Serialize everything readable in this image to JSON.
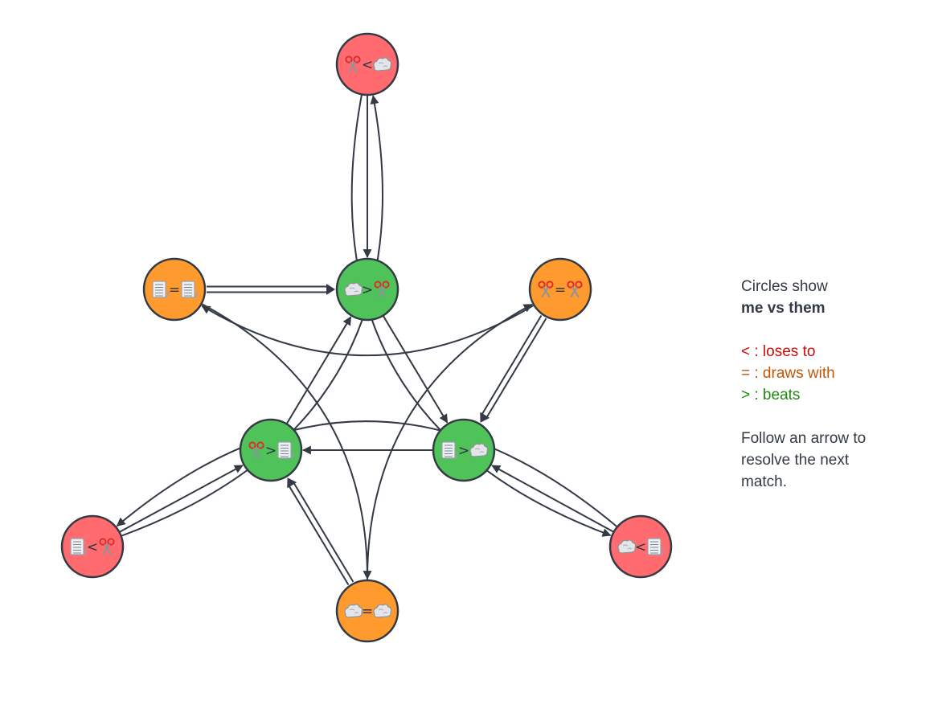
{
  "colors": {
    "loses": "#ff6b6e",
    "draws": "#ff9a2e",
    "beats": "#4fc25a",
    "stroke": "#333a45"
  },
  "icons": {
    "rock": "rock-icon",
    "paper": "paper-icon",
    "scissors": "scissors-icon"
  },
  "nodes": [
    {
      "id": "s_lt_r",
      "me": "scissors",
      "op": "<",
      "them": "rock",
      "result": "loses"
    },
    {
      "id": "p_eq_p",
      "me": "paper",
      "op": "=",
      "them": "paper",
      "result": "draws"
    },
    {
      "id": "r_gt_s",
      "me": "rock",
      "op": ">",
      "them": "scissors",
      "result": "beats"
    },
    {
      "id": "s_eq_s",
      "me": "scissors",
      "op": "=",
      "them": "scissors",
      "result": "draws"
    },
    {
      "id": "s_gt_p",
      "me": "scissors",
      "op": ">",
      "them": "paper",
      "result": "beats"
    },
    {
      "id": "p_gt_r",
      "me": "paper",
      "op": ">",
      "them": "rock",
      "result": "beats"
    },
    {
      "id": "p_lt_s",
      "me": "paper",
      "op": "<",
      "them": "scissors",
      "result": "loses"
    },
    {
      "id": "r_lt_p",
      "me": "rock",
      "op": "<",
      "them": "paper",
      "result": "loses"
    },
    {
      "id": "r_eq_r",
      "me": "rock",
      "op": "=",
      "them": "rock",
      "result": "draws"
    }
  ],
  "edges": [
    {
      "from": "s_lt_r",
      "to": "r_gt_s"
    },
    {
      "from": "s_lt_r",
      "to": "r_lt_p"
    },
    {
      "from": "p_lt_s",
      "to": "s_lt_r"
    },
    {
      "from": "r_lt_p",
      "to": "p_lt_s"
    },
    {
      "from": "r_gt_s",
      "to": "p_gt_r"
    },
    {
      "from": "p_gt_r",
      "to": "s_gt_p"
    },
    {
      "from": "s_gt_p",
      "to": "r_gt_s"
    },
    {
      "from": "p_lt_s",
      "to": "s_gt_p"
    },
    {
      "from": "r_lt_p",
      "to": "p_gt_r"
    },
    {
      "from": "s_eq_s",
      "to": "p_eq_p"
    },
    {
      "from": "p_eq_p",
      "to": "r_eq_r"
    },
    {
      "from": "r_eq_r",
      "to": "s_eq_s"
    },
    {
      "from": "p_eq_p",
      "to": "r_gt_s",
      "double": true
    },
    {
      "from": "s_eq_s",
      "to": "p_gt_r",
      "double": true
    },
    {
      "from": "r_eq_r",
      "to": "s_gt_p",
      "double": true
    }
  ],
  "legend": {
    "line1": "Circles show",
    "line2": "me vs them",
    "loses": "< : loses to",
    "draws": "= : draws with",
    "beats": "> : beats",
    "follow1": "Follow an arrow to",
    "follow2": "resolve the next",
    "follow3": "match."
  }
}
